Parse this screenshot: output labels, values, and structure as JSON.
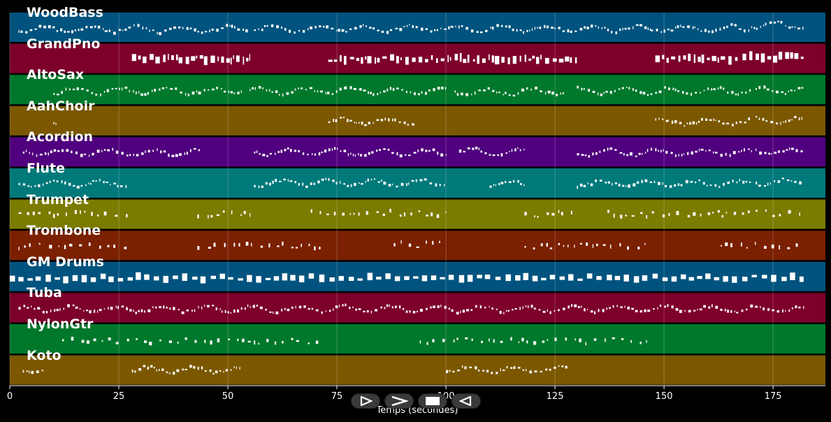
{
  "tracks": [
    {
      "name": "WoodBass",
      "color": "#00537e",
      "segments": [
        [
          2,
          55,
          0.55
        ],
        [
          56,
          147,
          0.5
        ],
        [
          147,
          170,
          0.5
        ],
        [
          170,
          182,
          0.3
        ]
      ],
      "style": "bass"
    },
    {
      "name": "GrandPno",
      "color": "#7d002b",
      "segments": [
        [
          28,
          55,
          0.45
        ],
        [
          73,
          130,
          0.45
        ],
        [
          148,
          167,
          0.45
        ],
        [
          168,
          182,
          0.35
        ]
      ],
      "style": "chords"
    },
    {
      "name": "AltoSax",
      "color": "#00782b",
      "segments": [
        [
          10,
          53,
          0.5
        ],
        [
          55,
          100,
          0.5
        ],
        [
          102,
          127,
          0.55
        ],
        [
          130,
          170,
          0.5
        ],
        [
          171,
          182,
          0.45
        ]
      ],
      "style": "melody"
    },
    {
      "name": "AahChoir",
      "color": "#7b5800",
      "segments": [
        [
          10,
          10.5,
          0.5
        ],
        [
          73,
          93,
          0.45
        ],
        [
          148,
          170,
          0.5
        ],
        [
          171,
          182,
          0.4
        ]
      ],
      "style": "melody"
    },
    {
      "name": "Acordion",
      "color": "#50007e",
      "segments": [
        [
          3,
          44,
          0.45
        ],
        [
          56,
          100,
          0.45
        ],
        [
          103,
          118,
          0.4
        ],
        [
          130,
          170,
          0.45
        ],
        [
          171,
          182,
          0.4
        ]
      ],
      "style": "melody"
    },
    {
      "name": "Flute",
      "color": "#00797b",
      "segments": [
        [
          2,
          27,
          0.45
        ],
        [
          56,
          100,
          0.4
        ],
        [
          110,
          118,
          0.45
        ],
        [
          130,
          170,
          0.45
        ],
        [
          171,
          182,
          0.35
        ]
      ],
      "style": "melody"
    },
    {
      "name": "Trumpet",
      "color": "#7b7b00",
      "segments": [
        [
          2,
          27,
          0.4
        ],
        [
          43,
          55,
          0.4
        ],
        [
          69,
          100,
          0.35
        ],
        [
          118,
          130,
          0.4
        ],
        [
          137,
          170,
          0.4
        ],
        [
          171,
          182,
          0.35
        ]
      ],
      "style": "sparse"
    },
    {
      "name": "Trombone",
      "color": "#7b2000",
      "segments": [
        [
          2,
          27,
          0.45
        ],
        [
          43,
          72,
          0.45
        ],
        [
          88,
          100,
          0.35
        ],
        [
          118,
          147,
          0.45
        ],
        [
          163,
          182,
          0.45
        ]
      ],
      "style": "sparse"
    },
    {
      "name": "GM Drums",
      "color": "#00537e",
      "segments": [
        [
          0,
          182,
          0.5
        ]
      ],
      "style": "drums"
    },
    {
      "name": "Tuba",
      "color": "#7d002b",
      "segments": [
        [
          2,
          182,
          0.5
        ]
      ],
      "style": "bass"
    },
    {
      "name": "NylonGtr",
      "color": "#00782b",
      "segments": [
        [
          12,
          72,
          0.55
        ],
        [
          94,
          147,
          0.55
        ]
      ],
      "style": "sparse"
    },
    {
      "name": "Koto",
      "color": "#7b5800",
      "segments": [
        [
          3,
          8,
          0.45
        ],
        [
          28,
          53,
          0.4
        ],
        [
          100,
          128,
          0.4
        ]
      ],
      "style": "melody"
    }
  ],
  "x_axis": {
    "label": "Temps (secondes)",
    "min": 0,
    "max": 187,
    "ticks": [
      0,
      25,
      50,
      75,
      100,
      125,
      150,
      175
    ],
    "grid": true
  },
  "note_color": "#ffffff",
  "transport": [
    {
      "name": "play-icon"
    },
    {
      "name": "forward-icon"
    },
    {
      "name": "stop-icon"
    },
    {
      "name": "rewind-icon"
    }
  ]
}
